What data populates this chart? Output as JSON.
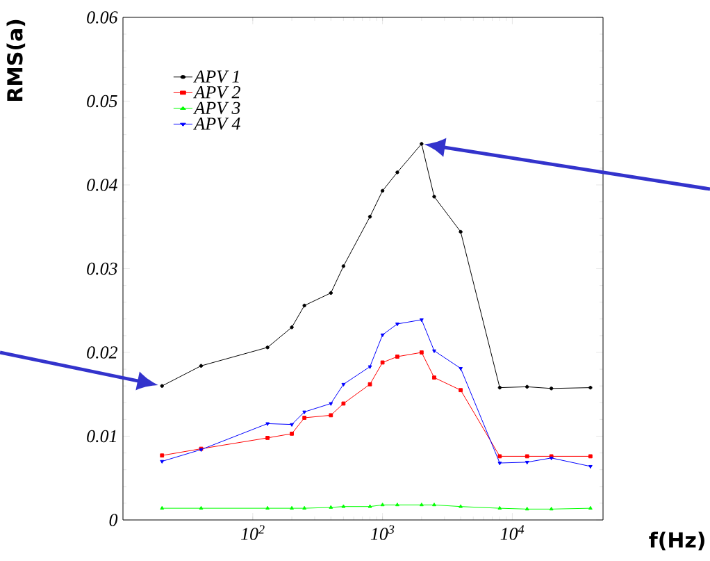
{
  "chart_data": {
    "type": "line",
    "xlabel": "f(Hz)",
    "ylabel": "RMS(a)",
    "log": "x",
    "x": [
      20,
      40,
      130,
      200,
      250,
      400,
      500,
      800,
      1000,
      1300,
      2000,
      2500,
      4000,
      8000,
      13000,
      20000,
      40000
    ],
    "series": [
      {
        "name": "APV 1",
        "color": "#000000",
        "marker": "circle",
        "values": [
          0.016,
          0.0184,
          0.0206,
          0.023,
          0.0256,
          0.0271,
          0.0303,
          0.0362,
          0.0393,
          0.0415,
          0.0449,
          0.0386,
          0.0344,
          0.0158,
          0.0159,
          0.0157,
          0.0158
        ]
      },
      {
        "name": "APV 2",
        "color": "#ff0000",
        "marker": "square",
        "values": [
          0.0077,
          0.0085,
          0.0098,
          0.0103,
          0.0122,
          0.0125,
          0.0139,
          0.0162,
          0.0188,
          0.0195,
          0.02,
          0.017,
          0.0155,
          0.0076,
          0.0076,
          0.0076,
          0.0076
        ]
      },
      {
        "name": "APV 3",
        "color": "#00ff00",
        "marker": "triangle",
        "values": [
          0.0014,
          0.0014,
          0.0014,
          0.0014,
          0.0014,
          0.0015,
          0.0016,
          0.0016,
          0.0018,
          0.0018,
          0.0018,
          0.0018,
          0.0016,
          0.0014,
          0.0013,
          0.0013,
          0.0014
        ]
      },
      {
        "name": "APV 4",
        "color": "#0000ff",
        "marker": "triangle_down",
        "values": [
          0.007,
          0.0084,
          0.0115,
          0.0114,
          0.0129,
          0.0139,
          0.0162,
          0.0183,
          0.0221,
          0.0234,
          0.0239,
          0.0202,
          0.0181,
          0.0068,
          0.0069,
          0.0074,
          0.0064
        ]
      }
    ],
    "xlim": [
      10,
      50000
    ],
    "xticks": [
      {
        "value": 100,
        "label": "10$^{2}$"
      },
      {
        "value": 1000,
        "label": "10$^{3}$"
      },
      {
        "value": 10000,
        "label": "10$^{4}$"
      }
    ],
    "ylim": [
      0,
      0.06
    ],
    "yticks": [
      {
        "value": 0,
        "label": "0"
      },
      {
        "value": 0.01,
        "label": "0.01"
      },
      {
        "value": 0.02,
        "label": "0.02"
      },
      {
        "value": 0.03,
        "label": "0.03"
      },
      {
        "value": 0.04,
        "label": "0.04"
      },
      {
        "value": 0.05,
        "label": "0.05"
      },
      {
        "value": 0.06,
        "label": "0.06"
      }
    ],
    "legend": "top left",
    "grid": false
  }
}
